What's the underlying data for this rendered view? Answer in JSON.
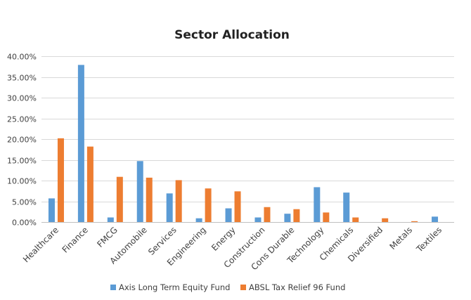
{
  "chart_data": {
    "type": "bar",
    "title": "Sector Allocation",
    "xlabel": "",
    "ylabel": "",
    "ylim": [
      0,
      40
    ],
    "y_ticks": [
      "0.00%",
      "5.00%",
      "10.00%",
      "15.00%",
      "20.00%",
      "25.00%",
      "30.00%",
      "35.00%",
      "40.00%"
    ],
    "grid": true,
    "legend_position": "bottom",
    "categories": [
      "Healthcare",
      "Finance",
      "FMCG",
      "Automobile",
      "Services",
      "Engineering",
      "Energy",
      "Construction",
      "Cons Durable",
      "Technology",
      "Chemicals",
      "Diversified",
      "Metals",
      "Textiles"
    ],
    "series": [
      {
        "name": "Axis Long Term Equity Fund",
        "color": "#5b9bd5",
        "values": [
          5.7,
          37.9,
          1.1,
          14.7,
          6.9,
          0.9,
          3.3,
          1.1,
          2.0,
          8.4,
          7.1,
          0,
          0,
          1.3
        ]
      },
      {
        "name": "ABSL Tax Relief 96 Fund",
        "color": "#ed7d31",
        "values": [
          20.2,
          18.2,
          10.9,
          10.7,
          10.1,
          8.1,
          7.4,
          3.6,
          3.1,
          2.3,
          1.1,
          0.9,
          0.2,
          0
        ]
      }
    ]
  }
}
